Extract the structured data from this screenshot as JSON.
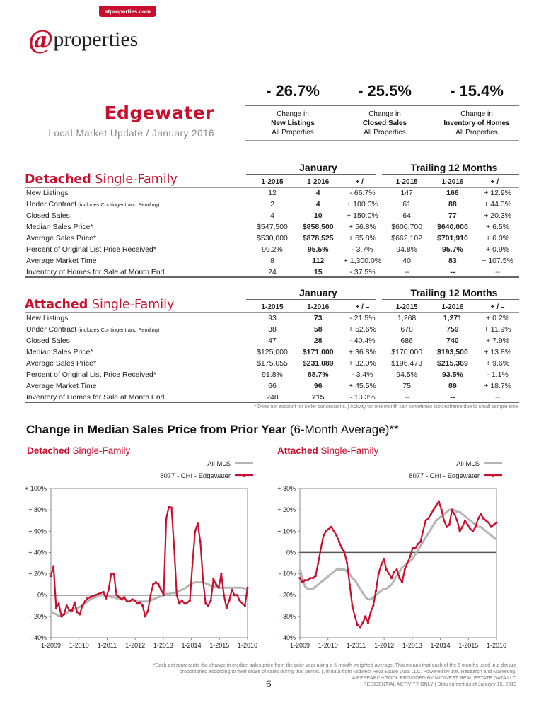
{
  "header": {
    "site_badge": "atproperties.com",
    "logo_at": "@",
    "logo_text": "properties",
    "area": "Edgewater",
    "subtitle": "Local Market Update / January 2016"
  },
  "kpis": [
    {
      "pct": "- 26.7%",
      "line1": "Change in",
      "line2": "New Listings",
      "line3": "All Properties"
    },
    {
      "pct": "- 25.5%",
      "line1": "Change in",
      "line2": "Closed Sales",
      "line3": "All Properties"
    },
    {
      "pct": "- 15.4%",
      "line1": "Change in",
      "line2": "Inventory of Homes",
      "line3": "All Properties"
    }
  ],
  "tables": {
    "group_month": "January",
    "group_trailing": "Trailing 12 Months",
    "columns": [
      "1-2015",
      "1-2016",
      "+ / –",
      "1-2015",
      "1-2016",
      "+ / –"
    ],
    "detached": {
      "title_bold": "Detached",
      "title_rest": " Single-Family",
      "rows": [
        {
          "label": "New Listings",
          "note": "",
          "vals": [
            "12",
            "4",
            "- 66.7%",
            "147",
            "166",
            "+ 12.9%"
          ]
        },
        {
          "label": "Under Contract",
          "note": " (includes Contingent and Pending)",
          "vals": [
            "2",
            "4",
            "+ 100.0%",
            "61",
            "88",
            "+ 44.3%"
          ]
        },
        {
          "label": "Closed Sales",
          "note": "",
          "vals": [
            "4",
            "10",
            "+ 150.0%",
            "64",
            "77",
            "+ 20.3%"
          ]
        },
        {
          "label": "Median Sales Price*",
          "note": "",
          "vals": [
            "$547,500",
            "$858,500",
            "+ 56.8%",
            "$600,700",
            "$640,000",
            "+ 6.5%"
          ]
        },
        {
          "label": "Average Sales Price*",
          "note": "",
          "vals": [
            "$530,000",
            "$878,525",
            "+ 65.8%",
            "$662,102",
            "$701,910",
            "+ 6.0%"
          ]
        },
        {
          "label": "Percent of Original List Price Received*",
          "note": "",
          "vals": [
            "99.2%",
            "95.5%",
            "- 3.7%",
            "94.8%",
            "95.7%",
            "+ 0.9%"
          ]
        },
        {
          "label": "Average Market Time",
          "note": "",
          "vals": [
            "8",
            "112",
            "+ 1,300.0%",
            "40",
            "83",
            "+ 107.5%"
          ]
        },
        {
          "label": "Inventory of Homes for Sale at Month End",
          "note": "",
          "vals": [
            "24",
            "15",
            "- 37.5%",
            "--",
            "--",
            "--"
          ]
        }
      ]
    },
    "attached": {
      "title_bold": "Attached",
      "title_rest": " Single-Family",
      "rows": [
        {
          "label": "New Listings",
          "note": "",
          "vals": [
            "93",
            "73",
            "- 21.5%",
            "1,268",
            "1,271",
            "+ 0.2%"
          ]
        },
        {
          "label": "Under Contract",
          "note": " (includes Contingent and Pending)",
          "vals": [
            "38",
            "58",
            "+ 52.6%",
            "678",
            "759",
            "+ 11.9%"
          ]
        },
        {
          "label": "Closed Sales",
          "note": "",
          "vals": [
            "47",
            "28",
            "- 40.4%",
            "686",
            "740",
            "+ 7.9%"
          ]
        },
        {
          "label": "Median Sales Price*",
          "note": "",
          "vals": [
            "$125,000",
            "$171,000",
            "+ 36.8%",
            "$170,000",
            "$193,500",
            "+ 13.8%"
          ]
        },
        {
          "label": "Average Sales Price*",
          "note": "",
          "vals": [
            "$175,055",
            "$231,089",
            "+ 32.0%",
            "$196,473",
            "$215,369",
            "+ 9.6%"
          ]
        },
        {
          "label": "Percent of Original List Price Received*",
          "note": "",
          "vals": [
            "91.8%",
            "88.7%",
            "- 3.4%",
            "94.5%",
            "93.5%",
            "- 1.1%"
          ]
        },
        {
          "label": "Average Market Time",
          "note": "",
          "vals": [
            "66",
            "96",
            "+ 45.5%",
            "75",
            "89",
            "+ 18.7%"
          ]
        },
        {
          "label": "Inventory of Homes for Sale at Month End",
          "note": "",
          "vals": [
            "248",
            "215",
            "- 13.3%",
            "--",
            "--",
            "--"
          ]
        }
      ]
    },
    "footnote": "* Does not account for seller concessions.  |  Activity for one month can sometimes look extreme due to small sample size."
  },
  "charts_section": {
    "heading": "Change in Median Sales Price from Prior Year",
    "heading_suffix": " (6-Month Average)**"
  },
  "chart_data": [
    {
      "type": "line",
      "title_bold": "Detached",
      "title_rest": " Single-Family",
      "ylim": [
        -40,
        100
      ],
      "yticks": [
        "+ 100%",
        "+ 80%",
        "+ 60%",
        "+ 40%",
        "+ 20%",
        "0%",
        "- 20%",
        "- 40%"
      ],
      "ytick_values": [
        100,
        80,
        60,
        40,
        20,
        0,
        -20,
        -40
      ],
      "xticks": [
        "1-2009",
        "1-2010",
        "1-2011",
        "1-2012",
        "1-2013",
        "1-2014",
        "1-2015",
        "1-2016"
      ],
      "grid": false,
      "legend_position": "top-right",
      "series": [
        {
          "name": "All MLS",
          "color": "#b5b5b5",
          "values": [
            -15,
            -17,
            -18,
            -20,
            -19,
            -18,
            -17,
            -15,
            -14,
            -13,
            -12,
            -11,
            -10,
            -8,
            -6,
            -4,
            -3,
            -2,
            -1,
            0,
            0,
            -1,
            -1,
            -2,
            -2,
            -3,
            -3,
            -4,
            -4,
            -5,
            -5,
            -5,
            -5,
            -6,
            -6,
            -6,
            -6,
            -6,
            -5,
            -4,
            -3,
            -2,
            -1,
            0,
            1,
            1,
            2,
            2,
            3,
            4,
            5,
            6,
            8,
            10,
            11,
            12,
            12,
            12,
            12,
            11,
            10,
            9,
            8,
            8,
            7,
            7,
            7,
            7,
            7,
            7,
            7,
            7,
            7,
            7,
            6,
            6
          ]
        },
        {
          "name": "8077 - CHI - Edgewater",
          "color": "#c8102e",
          "values": [
            18,
            27,
            -12,
            -8,
            -20,
            -18,
            -10,
            -14,
            -15,
            -7,
            -16,
            -18,
            -10,
            -6,
            -3,
            -2,
            -1,
            0,
            1,
            2,
            3,
            -3,
            5,
            20,
            20,
            0,
            -2,
            -4,
            -2,
            -6,
            -6,
            -4,
            -5,
            -8,
            -7,
            -10,
            -20,
            -15,
            0,
            10,
            12,
            10,
            5,
            0,
            72,
            83,
            82,
            45,
            0,
            -8,
            -5,
            -8,
            -7,
            -5,
            30,
            60,
            67,
            50,
            15,
            -8,
            -10,
            -5,
            15,
            10,
            7,
            20,
            0,
            -12,
            -5,
            5,
            0,
            0,
            -5,
            -8,
            -10,
            7
          ]
        }
      ]
    },
    {
      "type": "line",
      "title_bold": "Attached",
      "title_rest": " Single-Family",
      "ylim": [
        -40,
        30
      ],
      "yticks": [
        "+ 30%",
        "+ 20%",
        "+ 10%",
        "0%",
        "- 10%",
        "- 20%",
        "- 30%",
        "- 40%"
      ],
      "ytick_values": [
        30,
        20,
        10,
        0,
        -10,
        -20,
        -30,
        -40
      ],
      "xticks": [
        "1-2009",
        "1-2010",
        "1-2011",
        "1-2012",
        "1-2013",
        "1-2014",
        "1-2015",
        "1-2016"
      ],
      "grid": false,
      "legend_position": "top-right",
      "series": [
        {
          "name": "All MLS",
          "color": "#b5b5b5",
          "values": [
            -8,
            -12,
            -16,
            -17,
            -17,
            -17,
            -16,
            -15,
            -14,
            -13,
            -12,
            -11,
            -10,
            -9,
            -8,
            -8,
            -8,
            -8,
            -9,
            -10,
            -12,
            -13,
            -15,
            -17,
            -19,
            -21,
            -22,
            -22,
            -21,
            -20,
            -19,
            -18,
            -17,
            -17,
            -16,
            -15,
            -13,
            -11,
            -9,
            -7,
            -6,
            -5,
            -4,
            -3,
            -1,
            1,
            3,
            5,
            7,
            9,
            11,
            13,
            15,
            16,
            17,
            18,
            19,
            20,
            20,
            20,
            19,
            19,
            18,
            17,
            16,
            15,
            14,
            13,
            12,
            12,
            11,
            10,
            9,
            8,
            7,
            6
          ]
        },
        {
          "name": "8077 - CHI - Edgewater",
          "color": "#c8102e",
          "values": [
            -12,
            -14,
            -13,
            -13,
            -12,
            -12,
            -11,
            -5,
            2,
            8,
            10,
            11,
            12,
            10,
            8,
            5,
            2,
            0,
            -5,
            -15,
            -25,
            -30,
            -34,
            -35,
            -33,
            -30,
            -33,
            -28,
            -25,
            -18,
            -10,
            -6,
            -3,
            -8,
            -10,
            -12,
            -9,
            -8,
            -12,
            -14,
            -8,
            -5,
            -2,
            2,
            2,
            4,
            5,
            10,
            15,
            16,
            18,
            20,
            22,
            24,
            20,
            15,
            12,
            13,
            20,
            18,
            15,
            10,
            12,
            15,
            13,
            11,
            10,
            12,
            16,
            18,
            16,
            15,
            14,
            12,
            13,
            14
          ]
        }
      ]
    }
  ],
  "footer": {
    "line1": "*Each dot represents the change in median sales price from the prior year using a 6-month weighted average. This means that each of the 6 months used in a dot are",
    "line2": "proportioned according to their share of sales during that period.  |  All data from Midwest Real Estate Data LLC. Powered by 10K Research and Marketing.",
    "line3": "A RESEARCH TOOL PROVIDED BY MIDWEST REAL ESTATE DATA LLC",
    "line4": "RESIDENTIAL ACTIVITY ONLY  |  Data current as of January 15, 2013",
    "page_number": "6"
  }
}
